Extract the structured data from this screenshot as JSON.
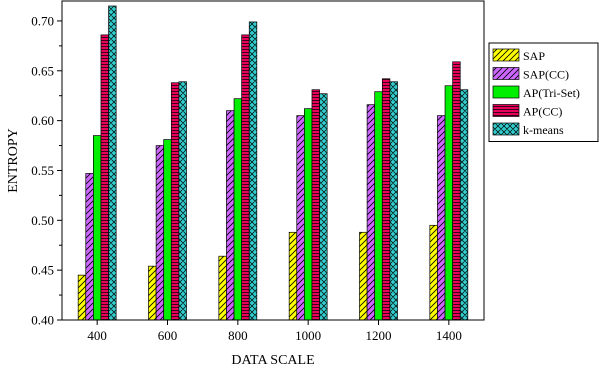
{
  "chart_data": {
    "type": "bar",
    "title": "",
    "xlabel": "DATA SCALE",
    "ylabel": "ENTROPY",
    "categories": [
      "400",
      "600",
      "800",
      "1000",
      "1200",
      "1400"
    ],
    "ylim": [
      0.4,
      0.72
    ],
    "yticks": [
      "0.40",
      "0.45",
      "0.50",
      "0.55",
      "0.60",
      "0.65",
      "0.70"
    ],
    "grid": false,
    "legend_position": "right",
    "series": [
      {
        "name": "SAP",
        "values": [
          0.445,
          0.454,
          0.464,
          0.488,
          0.488,
          0.495
        ],
        "color": "#ffff00",
        "pattern": "diagonal-right"
      },
      {
        "name": "SAP(CC)",
        "values": [
          0.547,
          0.575,
          0.61,
          0.605,
          0.616,
          0.605
        ],
        "color": "#cc66ff",
        "pattern": "diagonal-right"
      },
      {
        "name": "AP(Tri-Set)",
        "values": [
          0.585,
          0.581,
          0.622,
          0.612,
          0.629,
          0.635
        ],
        "color": "#00ee00",
        "pattern": "solid"
      },
      {
        "name": "AP(CC)",
        "values": [
          0.686,
          0.638,
          0.686,
          0.631,
          0.642,
          0.659
        ],
        "color": "#e8005a",
        "pattern": "horizontal"
      },
      {
        "name": "k-means",
        "values": [
          0.715,
          0.639,
          0.699,
          0.627,
          0.639,
          0.631
        ],
        "color": "#33cccc",
        "pattern": "crosshatch"
      }
    ]
  }
}
